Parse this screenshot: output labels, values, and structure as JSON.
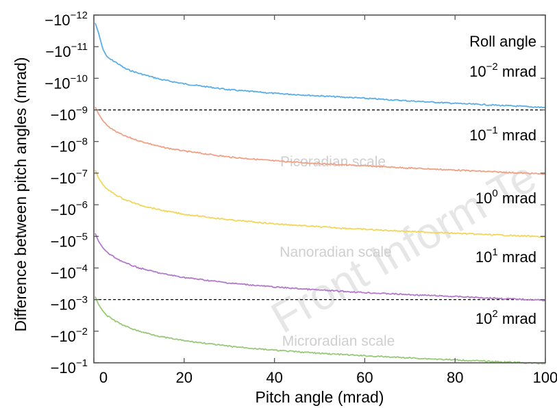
{
  "chart_data": {
    "type": "line",
    "xlabel": "Pitch angle (mrad)",
    "ylabel": "Difference between pitch angles (mrad)",
    "xlim": [
      0,
      100
    ],
    "x_ticks": [
      {
        "value": 0,
        "label": "0"
      },
      {
        "value": 20,
        "label": "20"
      },
      {
        "value": 40,
        "label": "40"
      },
      {
        "value": 60,
        "label": "60"
      },
      {
        "value": 80,
        "label": "80"
      },
      {
        "value": 100,
        "label": "100"
      }
    ],
    "y_scale": "log, decreasing downward (labels are negative powers of ten)",
    "ylim": [
      "-1e-12",
      "-1e-1"
    ],
    "y_ticks": [
      {
        "value": "-1e-12",
        "base": "−10",
        "exp": "−12"
      },
      {
        "value": "-1e-11",
        "base": "−10",
        "exp": "−11"
      },
      {
        "value": "-1e-10",
        "base": "−10",
        "exp": "−10"
      },
      {
        "value": "-1e-9",
        "base": "−10",
        "exp": "−9"
      },
      {
        "value": "-1e-8",
        "base": "−10",
        "exp": "−8"
      },
      {
        "value": "-1e-7",
        "base": "−10",
        "exp": "−7"
      },
      {
        "value": "-1e-6",
        "base": "−10",
        "exp": "−6"
      },
      {
        "value": "-1e-5",
        "base": "−10",
        "exp": "−5"
      },
      {
        "value": "-1e-4",
        "base": "−10",
        "exp": "−4"
      },
      {
        "value": "-1e-3",
        "base": "−10",
        "exp": "−3"
      },
      {
        "value": "-1e-2",
        "base": "−10",
        "exp": "−2"
      },
      {
        "value": "-1e-1",
        "base": "−10",
        "exp": "−1"
      }
    ],
    "legend_title": "Roll angle",
    "grid": false,
    "series": [
      {
        "label_base": "10",
        "label_exp": "−2",
        "label_unit": " mrad",
        "color": "#5aaee6",
        "points": [
          [
            0.3,
            -1.8e-12
          ],
          [
            1,
            -3.5e-12
          ],
          [
            2,
            -1.2e-11
          ],
          [
            3,
            -2.2e-11
          ],
          [
            5,
            -3.2e-11
          ],
          [
            7,
            -5e-11
          ],
          [
            10,
            -7e-11
          ],
          [
            15,
            -1.1e-10
          ],
          [
            20,
            -1.5e-10
          ],
          [
            30,
            -2.3e-10
          ],
          [
            40,
            -3e-10
          ],
          [
            50,
            -3.6e-10
          ],
          [
            60,
            -4.3e-10
          ],
          [
            70,
            -5.2e-10
          ],
          [
            80,
            -6.2e-10
          ],
          [
            90,
            -7.2e-10
          ],
          [
            100,
            -8.4e-10
          ]
        ]
      },
      {
        "label_base": "10",
        "label_exp": "−1",
        "label_unit": " mrad",
        "color": "#f0a085",
        "points": [
          [
            0.3,
            -8e-10
          ],
          [
            1,
            -1.3e-09
          ],
          [
            2,
            -2.2e-09
          ],
          [
            3,
            -3.2e-09
          ],
          [
            5,
            -5e-09
          ],
          [
            7,
            -6.8e-09
          ],
          [
            10,
            -9.5e-09
          ],
          [
            15,
            -1.5e-08
          ],
          [
            20,
            -2e-08
          ],
          [
            30,
            -3.1e-08
          ],
          [
            40,
            -4.1e-08
          ],
          [
            50,
            -5e-08
          ],
          [
            60,
            -5.9e-08
          ],
          [
            70,
            -6.9e-08
          ],
          [
            80,
            -8e-08
          ],
          [
            90,
            -9.3e-08
          ],
          [
            100,
            -1.07e-07
          ]
        ]
      },
      {
        "label_base": "10",
        "label_exp": "0",
        "label_unit": " mrad",
        "color": "#f2d65a",
        "points": [
          [
            0.3,
            -8e-08
          ],
          [
            1,
            -1.4e-07
          ],
          [
            2,
            -2.3e-07
          ],
          [
            3,
            -3.3e-07
          ],
          [
            5,
            -5e-07
          ],
          [
            7,
            -7e-07
          ],
          [
            10,
            -1e-06
          ],
          [
            15,
            -1.5e-06
          ],
          [
            20,
            -2e-06
          ],
          [
            30,
            -3e-06
          ],
          [
            40,
            -4e-06
          ],
          [
            50,
            -5e-06
          ],
          [
            60,
            -6e-06
          ],
          [
            70,
            -7e-06
          ],
          [
            80,
            -8e-06
          ],
          [
            90,
            -9.1e-06
          ],
          [
            100,
            -1.04e-05
          ]
        ]
      },
      {
        "label_base": "10",
        "label_exp": "1",
        "label_unit": " mrad",
        "color": "#b279cc",
        "points": [
          [
            0.3,
            -8e-06
          ],
          [
            1,
            -1.4e-05
          ],
          [
            2,
            -2.3e-05
          ],
          [
            3,
            -3.3e-05
          ],
          [
            5,
            -5e-05
          ],
          [
            7,
            -7e-05
          ],
          [
            10,
            -0.0001
          ],
          [
            15,
            -0.00015
          ],
          [
            20,
            -0.0002
          ],
          [
            30,
            -0.0003
          ],
          [
            40,
            -0.0004
          ],
          [
            50,
            -0.0005
          ],
          [
            60,
            -0.0006
          ],
          [
            70,
            -0.0007
          ],
          [
            80,
            -0.0008
          ],
          [
            90,
            -0.00092
          ],
          [
            100,
            -0.00105
          ]
        ]
      },
      {
        "label_base": "10",
        "label_exp": "2",
        "label_unit": " mrad",
        "color": "#96c978",
        "points": [
          [
            0.3,
            -0.0008
          ],
          [
            1,
            -0.0014
          ],
          [
            2,
            -0.0023
          ],
          [
            3,
            -0.0033
          ],
          [
            5,
            -0.005
          ],
          [
            7,
            -0.007
          ],
          [
            10,
            -0.01
          ],
          [
            15,
            -0.015
          ],
          [
            20,
            -0.02
          ],
          [
            30,
            -0.03
          ],
          [
            40,
            -0.04
          ],
          [
            50,
            -0.05
          ],
          [
            60,
            -0.06
          ],
          [
            70,
            -0.07
          ],
          [
            80,
            -0.081
          ],
          [
            90,
            -0.093
          ],
          [
            100,
            -0.106
          ]
        ]
      }
    ],
    "reference_lines": [
      {
        "y": "-1e-9",
        "style": "dashed",
        "color": "#000000"
      },
      {
        "y": "-1e-3",
        "style": "dashed",
        "color": "#000000"
      }
    ],
    "region_labels": [
      "Picoradian scale",
      "Nanoradian scale",
      "Microradian scale"
    ],
    "watermark": "Front Inform Te"
  }
}
